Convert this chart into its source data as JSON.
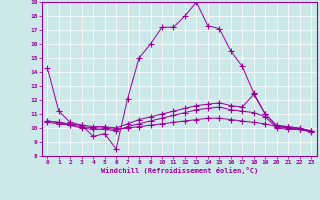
{
  "xlabel": "Windchill (Refroidissement éolien,°C)",
  "background_color": "#cce8e8",
  "line_color": "#990099",
  "xlim": [
    -0.5,
    23.5
  ],
  "ylim": [
    8,
    19
  ],
  "yticks": [
    8,
    9,
    10,
    11,
    12,
    13,
    14,
    15,
    16,
    17,
    18,
    19
  ],
  "xticks": [
    0,
    1,
    2,
    3,
    4,
    5,
    6,
    7,
    8,
    9,
    10,
    11,
    12,
    13,
    14,
    15,
    16,
    17,
    18,
    19,
    20,
    21,
    22,
    23
  ],
  "line1_x": [
    0,
    1,
    2,
    3,
    4,
    5,
    6,
    7,
    8,
    9,
    10,
    11,
    12,
    13,
    14,
    15,
    16,
    17,
    18,
    19,
    20,
    21,
    22,
    23
  ],
  "line1_y": [
    14.3,
    11.2,
    10.4,
    10.2,
    9.4,
    9.6,
    8.5,
    12.1,
    15.0,
    16.0,
    17.2,
    17.2,
    18.0,
    19.0,
    17.3,
    17.1,
    15.5,
    14.4,
    12.5,
    11.0,
    10.1,
    10.1,
    9.9,
    9.8
  ],
  "line2_x": [
    0,
    1,
    2,
    3,
    4,
    5,
    6,
    7,
    8,
    9,
    10,
    11,
    12,
    13,
    14,
    15,
    16,
    17,
    18,
    19,
    20,
    21,
    22,
    23
  ],
  "line2_y": [
    10.5,
    10.4,
    10.3,
    10.2,
    10.1,
    10.1,
    10.0,
    10.3,
    10.6,
    10.8,
    11.0,
    11.2,
    11.4,
    11.6,
    11.7,
    11.8,
    11.6,
    11.5,
    12.4,
    11.0,
    10.2,
    10.1,
    10.0,
    9.8
  ],
  "line3_x": [
    0,
    1,
    2,
    3,
    4,
    5,
    6,
    7,
    8,
    9,
    10,
    11,
    12,
    13,
    14,
    15,
    16,
    17,
    18,
    19,
    20,
    21,
    22,
    23
  ],
  "line3_y": [
    10.5,
    10.4,
    10.2,
    10.0,
    9.9,
    9.9,
    9.8,
    10.1,
    10.3,
    10.5,
    10.7,
    10.9,
    11.1,
    11.3,
    11.4,
    11.5,
    11.3,
    11.2,
    11.1,
    10.8,
    10.0,
    9.9,
    9.9,
    9.8
  ],
  "line4_x": [
    0,
    1,
    2,
    3,
    4,
    5,
    6,
    7,
    8,
    9,
    10,
    11,
    12,
    13,
    14,
    15,
    16,
    17,
    18,
    19,
    20,
    21,
    22,
    23
  ],
  "line4_y": [
    10.4,
    10.3,
    10.2,
    10.1,
    10.0,
    10.0,
    9.9,
    10.0,
    10.1,
    10.2,
    10.3,
    10.4,
    10.5,
    10.6,
    10.7,
    10.7,
    10.6,
    10.5,
    10.4,
    10.3,
    10.1,
    10.0,
    9.9,
    9.7
  ]
}
